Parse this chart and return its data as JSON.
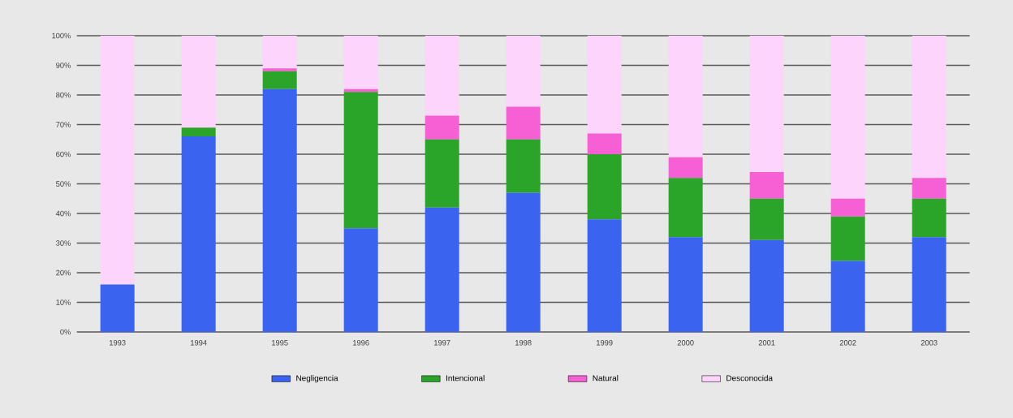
{
  "chart_data": {
    "type": "bar",
    "stacked": true,
    "categories": [
      "1993",
      "1994",
      "1995",
      "1996",
      "1997",
      "1998",
      "1999",
      "2000",
      "2001",
      "2002",
      "2003"
    ],
    "series": [
      {
        "name": "Negligencia",
        "color": "#3a63f0",
        "values": [
          16,
          66,
          82,
          35,
          42,
          47,
          38,
          32,
          31,
          24,
          32
        ]
      },
      {
        "name": "Intencional",
        "color": "#2aa52a",
        "values": [
          0,
          3,
          6,
          46,
          23,
          18,
          22,
          20,
          14,
          15,
          13
        ]
      },
      {
        "name": "Natural",
        "color": "#f75fd5",
        "values": [
          0,
          0,
          1,
          1,
          8,
          11,
          7,
          7,
          9,
          6,
          7
        ]
      },
      {
        "name": "Desconocida",
        "color": "#fcd4fc",
        "values": [
          84,
          31,
          11,
          18,
          27,
          24,
          33,
          41,
          46,
          55,
          48
        ]
      }
    ],
    "ylim": [
      0,
      100
    ],
    "yticks": [
      {
        "value": 0,
        "label": "0%"
      },
      {
        "value": 10,
        "label": "10%"
      },
      {
        "value": 20,
        "label": "20%"
      },
      {
        "value": 30,
        "label": "30%"
      },
      {
        "value": 40,
        "label": "40%"
      },
      {
        "value": 50,
        "label": "50%"
      },
      {
        "value": 60,
        "label": "60%"
      },
      {
        "value": 70,
        "label": "70%"
      },
      {
        "value": 80,
        "label": "80%"
      },
      {
        "value": 90,
        "label": "90%"
      },
      {
        "value": 100,
        "label": "100%"
      }
    ],
    "grid": "y",
    "legend": "bottom"
  }
}
